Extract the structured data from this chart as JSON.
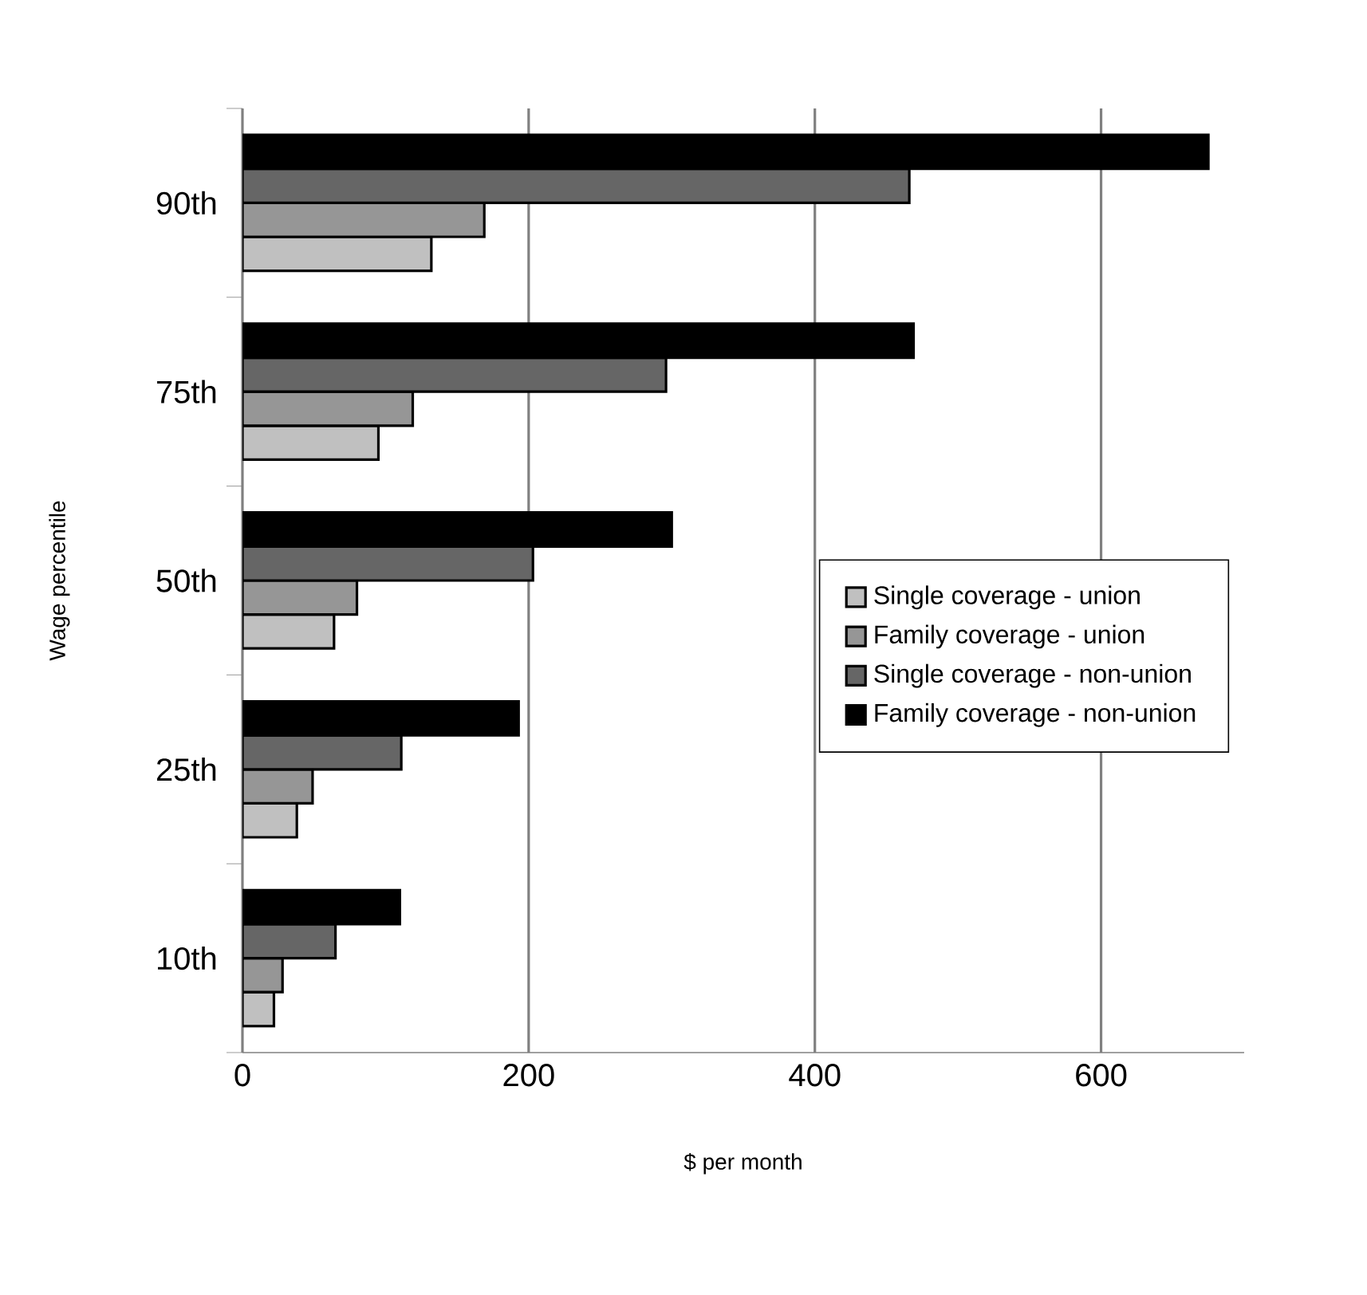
{
  "chart_data": {
    "type": "bar",
    "orientation": "horizontal",
    "xlabel": "$ per month",
    "ylabel": "Wage percentile",
    "categories": [
      "90th",
      "75th",
      "50th",
      "25th",
      "10th"
    ],
    "series": [
      {
        "name": "Single coverage - union",
        "color": "#c0c0c0",
        "values": [
          132,
          95,
          64,
          38,
          22
        ]
      },
      {
        "name": "Family coverage - union",
        "color": "#969696",
        "values": [
          169,
          119,
          80,
          49,
          28
        ]
      },
      {
        "name": "Single coverage - non-union",
        "color": "#666666",
        "values": [
          466,
          296,
          203,
          111,
          65
        ]
      },
      {
        "name": "Family coverage - non-union",
        "color": "#000000",
        "values": [
          675,
          469,
          300,
          193,
          110
        ]
      }
    ],
    "xlim": [
      0,
      700
    ],
    "xticks": [
      0,
      200,
      400,
      600
    ],
    "grid": "x",
    "legend": "right"
  }
}
